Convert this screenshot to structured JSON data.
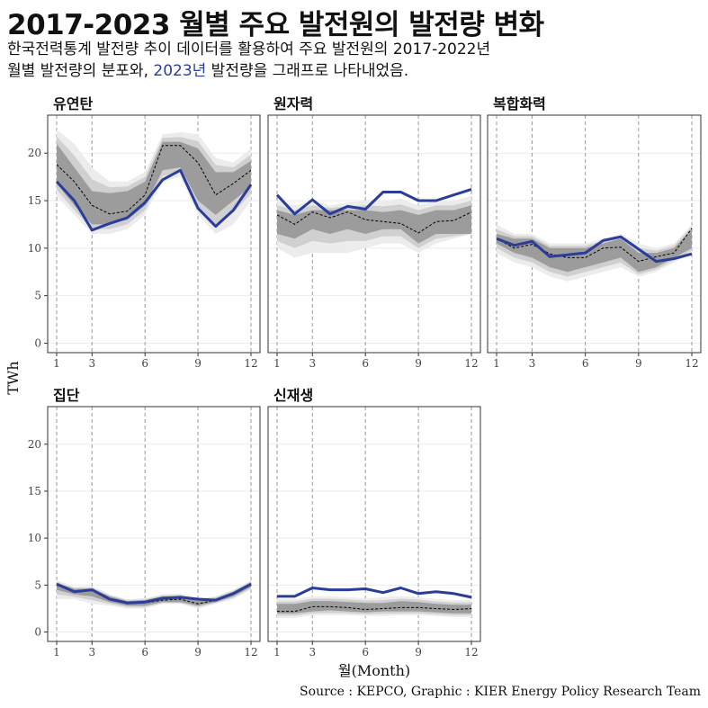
{
  "title": "2017-2023 월별 주요 발전원의 발전량 변화",
  "subtitle": {
    "line1": "한국전력통계 발전량 추이 데이터를 활용하여 주요 발전원의 2017-2022년",
    "line2_pre": "월별 발전량의 분포와, ",
    "line2_highlight": "2023년",
    "line2_post": " 발전량을 그래프로 나타내었음."
  },
  "caption": "Source : KEPCO, Graphic : KIER Energy Policy Research Team",
  "colors": {
    "highlight": "#2a3d9a",
    "band_outer": "#ececec",
    "band_mid": "#d0d0d0",
    "band_inner": "#9c9c9c",
    "median": "#000000"
  },
  "chart_data": {
    "type": "line",
    "xlabel": "월(Month)",
    "ylabel": "TWh",
    "x": [
      1,
      2,
      3,
      4,
      5,
      6,
      7,
      8,
      9,
      10,
      11,
      12
    ],
    "xticks": [
      1,
      3,
      6,
      9,
      12
    ],
    "yticks": [
      0,
      5,
      10,
      15,
      20
    ],
    "ylim": [
      -1,
      24
    ],
    "grid": true,
    "facets": [
      {
        "name": "유연탄",
        "series_2023": [
          17.0,
          15.0,
          11.9,
          12.6,
          13.2,
          14.8,
          17.2,
          18.2,
          14.2,
          12.3,
          14.0,
          16.7
        ],
        "median_2017_2022": [
          18.8,
          17.0,
          14.5,
          13.6,
          13.9,
          15.6,
          20.8,
          20.8,
          19.0,
          15.6,
          16.8,
          18.2
        ],
        "min": [
          15.5,
          13.5,
          11.5,
          11.5,
          12.0,
          13.5,
          17.0,
          17.5,
          13.5,
          11.5,
          12.5,
          15.0
        ],
        "q1": [
          16.8,
          14.5,
          12.5,
          12.5,
          13.0,
          14.5,
          18.2,
          18.5,
          15.0,
          13.5,
          15.0,
          16.5
        ],
        "q3": [
          21.0,
          18.5,
          16.0,
          15.8,
          16.0,
          17.0,
          21.2,
          21.2,
          20.5,
          18.0,
          18.0,
          19.2
        ],
        "max": [
          22.5,
          21.0,
          18.5,
          17.0,
          17.0,
          18.0,
          22.0,
          22.2,
          22.0,
          19.5,
          19.0,
          20.5
        ]
      },
      {
        "name": "원자력",
        "series_2023": [
          15.6,
          13.6,
          15.1,
          13.6,
          14.4,
          14.1,
          15.9,
          15.9,
          15.0,
          15.0,
          15.6,
          16.2
        ],
        "median_2017_2022": [
          13.5,
          12.5,
          13.8,
          13.2,
          13.8,
          13.0,
          12.8,
          12.6,
          11.6,
          12.8,
          12.9,
          13.8
        ],
        "min": [
          10.0,
          9.0,
          9.5,
          9.5,
          9.5,
          10.0,
          10.5,
          10.5,
          9.5,
          10.5,
          11.0,
          11.5
        ],
        "q1": [
          11.5,
          11.0,
          12.0,
          11.5,
          12.0,
          11.5,
          12.0,
          12.0,
          10.5,
          11.5,
          11.5,
          11.5
        ],
        "q3": [
          14.0,
          13.5,
          14.0,
          14.0,
          14.0,
          14.0,
          13.8,
          14.0,
          13.5,
          14.0,
          14.0,
          14.5
        ],
        "max": [
          15.0,
          14.5,
          15.0,
          14.5,
          14.8,
          15.0,
          15.0,
          15.2,
          14.5,
          15.0,
          15.0,
          15.5
        ]
      },
      {
        "name": "복합화력",
        "series_2023": [
          11.0,
          10.3,
          10.7,
          9.1,
          9.3,
          9.5,
          10.8,
          11.2,
          9.9,
          8.6,
          8.9,
          9.4
        ],
        "median_2017_2022": [
          11.0,
          10.0,
          10.4,
          9.4,
          9.0,
          9.0,
          10.0,
          10.1,
          8.6,
          9.1,
          9.5,
          12.1
        ],
        "min": [
          9.5,
          8.5,
          8.0,
          7.0,
          6.5,
          7.0,
          7.5,
          8.0,
          7.0,
          7.5,
          8.5,
          9.5
        ],
        "q1": [
          10.5,
          9.5,
          9.0,
          8.0,
          7.5,
          8.0,
          8.5,
          9.0,
          7.5,
          8.0,
          9.0,
          10.0
        ],
        "q3": [
          11.5,
          11.0,
          11.0,
          10.0,
          10.0,
          10.0,
          10.5,
          11.0,
          9.5,
          9.5,
          10.0,
          12.0
        ],
        "max": [
          12.5,
          11.5,
          11.5,
          10.5,
          10.5,
          10.5,
          11.0,
          11.5,
          10.5,
          10.0,
          10.5,
          12.5
        ]
      },
      {
        "name": "집단",
        "series_2023": [
          5.1,
          4.3,
          4.5,
          3.5,
          3.1,
          3.2,
          3.6,
          3.7,
          3.5,
          3.4,
          4.1,
          5.1
        ],
        "median_2017_2022": [
          5.0,
          4.3,
          4.4,
          3.5,
          3.0,
          3.1,
          3.4,
          3.5,
          3.0,
          3.4,
          4.1,
          5.1
        ],
        "min": [
          3.5,
          3.5,
          3.0,
          2.8,
          2.5,
          2.5,
          3.0,
          3.0,
          2.5,
          3.0,
          3.5,
          4.5
        ],
        "q1": [
          4.5,
          4.0,
          3.8,
          3.2,
          2.8,
          2.8,
          3.2,
          3.2,
          2.8,
          3.2,
          3.8,
          4.8
        ],
        "q3": [
          5.2,
          4.6,
          4.6,
          3.8,
          3.3,
          3.4,
          3.8,
          3.8,
          3.4,
          3.6,
          4.3,
          5.3
        ],
        "max": [
          5.5,
          4.8,
          4.9,
          4.0,
          3.5,
          3.6,
          4.0,
          4.1,
          3.6,
          3.8,
          4.5,
          5.5
        ]
      },
      {
        "name": "신재생",
        "series_2023": [
          3.8,
          3.8,
          4.7,
          4.5,
          4.5,
          4.6,
          4.2,
          4.7,
          4.1,
          4.3,
          4.1,
          3.7
        ],
        "median_2017_2022": [
          2.2,
          2.2,
          2.7,
          2.7,
          2.6,
          2.4,
          2.5,
          2.6,
          2.6,
          2.5,
          2.4,
          2.5
        ],
        "min": [
          1.5,
          1.5,
          1.8,
          1.8,
          1.8,
          1.7,
          1.7,
          1.8,
          1.8,
          1.7,
          1.6,
          1.6
        ],
        "q1": [
          2.0,
          2.0,
          2.2,
          2.3,
          2.2,
          2.1,
          2.2,
          2.2,
          2.2,
          2.1,
          2.0,
          2.0
        ],
        "q3": [
          3.0,
          3.0,
          3.3,
          3.3,
          3.2,
          3.1,
          3.1,
          3.3,
          3.2,
          3.0,
          2.9,
          2.9
        ],
        "max": [
          3.5,
          3.5,
          3.8,
          3.8,
          3.7,
          3.6,
          3.7,
          3.8,
          3.7,
          3.5,
          3.4,
          3.4
        ]
      }
    ]
  }
}
